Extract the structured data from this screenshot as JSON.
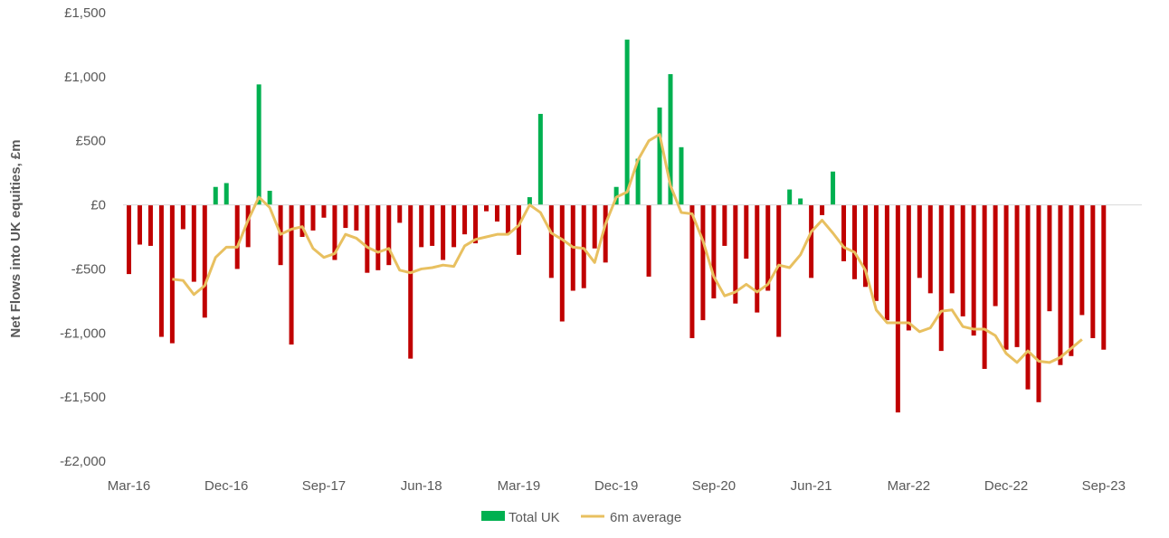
{
  "chart_data": {
    "type": "bar",
    "title": "",
    "xlabel": "",
    "ylabel": "Net Flows into UK equities, £m",
    "ylim": [
      -2000,
      1500
    ],
    "yticks": [
      1500,
      1000,
      500,
      0,
      -500,
      -1000,
      -1500,
      -2000
    ],
    "ytick_labels": [
      "£1,500",
      "£1,000",
      "£500",
      "£0",
      "-£500",
      "-£1,000",
      "-£1,500",
      "-£2,000"
    ],
    "x_tick_labels": [
      "Mar-16",
      "Dec-16",
      "Sep-17",
      "Jun-18",
      "Mar-19",
      "Dec-19",
      "Sep-20",
      "Jun-21",
      "Mar-22",
      "Dec-22",
      "Sep-23"
    ],
    "x_tick_interval_months": 9,
    "x_start": "Mar-16",
    "x_end": "Sep-23",
    "grid": false,
    "legend_position": "bottom",
    "colors": {
      "positive": "#00B050",
      "negative": "#C00000",
      "average": "#E8C060",
      "axis": "#D9D9D9",
      "text": "#595959"
    },
    "series": [
      {
        "name": "Total UK",
        "type": "bar",
        "values": [
          -540,
          -310,
          -320,
          -1030,
          -1080,
          -190,
          -600,
          -880,
          140,
          170,
          -500,
          -330,
          940,
          110,
          -470,
          -1090,
          -250,
          -200,
          -100,
          -430,
          -180,
          -200,
          -530,
          -510,
          -470,
          -140,
          -1200,
          -330,
          -320,
          -430,
          -330,
          -230,
          -300,
          -50,
          -130,
          -230,
          -390,
          60,
          710,
          -570,
          -910,
          -670,
          -650,
          -340,
          -450,
          140,
          1290,
          360,
          -560,
          760,
          1020,
          450,
          -1040,
          -900,
          -730,
          -320,
          -770,
          -420,
          -840,
          -670,
          -1030,
          120,
          50,
          -570,
          -80,
          260,
          -440,
          -580,
          -640,
          -750,
          -900,
          -1620,
          -980,
          -570,
          -690,
          -1140,
          -690,
          -870,
          -1020,
          -1280,
          -790,
          -1130,
          -1110,
          -1440,
          -1540,
          -830,
          -1250,
          -1180,
          -860,
          -1040,
          -1130
        ]
      },
      {
        "name": "6m average",
        "type": "line",
        "start_index": 4,
        "values": [
          -580,
          -590,
          -700,
          -630,
          -410,
          -330,
          -330,
          -120,
          60,
          -20,
          -230,
          -190,
          -170,
          -340,
          -410,
          -380,
          -230,
          -260,
          -330,
          -370,
          -340,
          -510,
          -530,
          -500,
          -490,
          -470,
          -480,
          -320,
          -270,
          -250,
          -230,
          -230,
          -160,
          0,
          -60,
          -220,
          -270,
          -330,
          -340,
          -450,
          -150,
          60,
          100,
          350,
          500,
          550,
          150,
          -60,
          -70,
          -280,
          -560,
          -710,
          -680,
          -620,
          -680,
          -620,
          -470,
          -490,
          -390,
          -210,
          -120,
          -220,
          -330,
          -370,
          -510,
          -820,
          -920,
          -920,
          -920,
          -990,
          -960,
          -830,
          -820,
          -950,
          -970,
          -970,
          -1020,
          -1160,
          -1230,
          -1140,
          -1220,
          -1230,
          -1190,
          -1120,
          -1050
        ]
      }
    ]
  }
}
